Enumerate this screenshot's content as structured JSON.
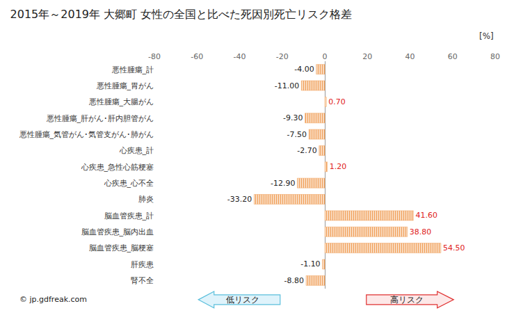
{
  "chart_data": {
    "type": "bar",
    "orientation": "horizontal",
    "title": "2015年～2019年 大郷町 女性の全国と比べた死因別死亡リスク格差",
    "categories": [
      "悪性腫瘍_計",
      "悪性腫瘍_胃がん",
      "悪性腫瘍_大腸がん",
      "悪性腫瘍_肝がん･肝内胆管がん",
      "悪性腫瘍_気管がん･気管支がん･肺がん",
      "心疾患_計",
      "心疾患_急性心筋梗塞",
      "心疾患_心不全",
      "肺炎",
      "脳血管疾患_計",
      "脳血管疾患_脳内出血",
      "脳血管疾患_脳梗塞",
      "肝疾患",
      "腎不全"
    ],
    "values": [
      -4.0,
      -11.0,
      0.7,
      -9.3,
      -7.5,
      -2.7,
      1.2,
      -12.9,
      -33.2,
      41.6,
      38.8,
      54.5,
      -1.1,
      -8.8
    ],
    "value_labels": [
      "-4.00",
      "-11.00",
      "0.70",
      "-9.30",
      "-7.50",
      "-2.70",
      "1.20",
      "-12.90",
      "-33.20",
      "41.60",
      "38.80",
      "54.50",
      "-1.10",
      "-8.80"
    ],
    "data_labels": true,
    "color": "#f0a05a",
    "xlim": [
      -80,
      80
    ],
    "xticks": [
      -80,
      -60,
      -40,
      -20,
      0,
      20,
      40,
      60,
      80
    ],
    "grid": false,
    "annotations": [
      "[%]",
      "低リスク",
      "高リスク",
      "© jp.gdfreak.com"
    ]
  }
}
